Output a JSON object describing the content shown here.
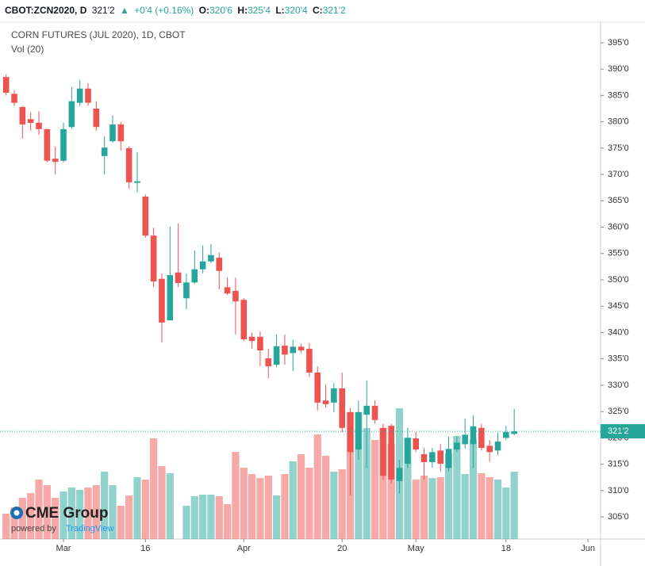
{
  "header": {
    "symbol": "CBOT:ZCN2020, D",
    "last": "321'2",
    "change": "+0'4 (+0.16%)",
    "ohlc": [
      {
        "label": "O:",
        "value": "320'6"
      },
      {
        "label": "H:",
        "value": "325'4"
      },
      {
        "label": "L:",
        "value": "320'4"
      },
      {
        "label": "C:",
        "value": "321'2"
      }
    ]
  },
  "logo": {
    "name": "CME Group",
    "powered": "powered by",
    "brand": "TradingView"
  },
  "chart_data": {
    "type": "candlestick",
    "title": "CORN FUTURES (JUL 2020), 1D, CBOT",
    "subtitle": "Vol (20)",
    "up_color": "#26a69a",
    "down_color": "#ef5350",
    "grid": false,
    "categories": [
      null,
      null,
      null,
      null,
      null,
      null,
      null,
      "Mar",
      null,
      null,
      null,
      null,
      null,
      null,
      null,
      null,
      null,
      "16",
      null,
      null,
      null,
      null,
      null,
      null,
      null,
      null,
      null,
      null,
      null,
      "Apr",
      null,
      null,
      null,
      null,
      null,
      null,
      null,
      null,
      null,
      null,
      null,
      "20",
      null,
      null,
      null,
      null,
      null,
      null,
      null,
      null,
      "May",
      null,
      null,
      null,
      null,
      null,
      null,
      null,
      null,
      null,
      null,
      "18",
      null,
      null,
      null,
      null,
      null,
      null,
      null,
      null,
      null,
      "Jun"
    ],
    "open": [
      388.5,
      385.3,
      382.8,
      380.5,
      379.8,
      378.6,
      373,
      372.6,
      379,
      383.6,
      386.3,
      382.5,
      373.5,
      376.3,
      379.5,
      375,
      368.4,
      365.8,
      358.4,
      350.2,
      342.3,
      351.4,
      346.5,
      349.5,
      352,
      353.5,
      354.2,
      348.6,
      347.9,
      346.2,
      339.2,
      339.2,
      335.1,
      333.9,
      337.5,
      336.1,
      337.3,
      336.9,
      332.4,
      327.1,
      326.7,
      329.4,
      324.9,
      317.8,
      324.4,
      326.1,
      321.9,
      322.3,
      311.8,
      315.1,
      319.9,
      316.9,
      315.4,
      317.6,
      314.3,
      317.8,
      318.8,
      318.8,
      321.9,
      318.5,
      317.6,
      320,
      320.75,
      null,
      null,
      null,
      null,
      null,
      null,
      null,
      null,
      null
    ],
    "high": [
      389,
      386,
      383,
      381.8,
      382,
      378.7,
      375.3,
      379.8,
      386.6,
      387.9,
      387.3,
      383.9,
      377.2,
      381.2,
      380,
      375.3,
      374.2,
      366.2,
      359.9,
      351.2,
      360.1,
      360.7,
      351.2,
      355.6,
      356.5,
      356.8,
      355.2,
      350.4,
      350.4,
      346.5,
      340,
      340.2,
      336.9,
      339.6,
      339.6,
      338.6,
      337.9,
      338,
      333.6,
      330.1,
      330.4,
      332.4,
      325.7,
      327.1,
      330.9,
      327.1,
      322.7,
      322.7,
      315.8,
      321.9,
      321.1,
      318.1,
      318.1,
      318.8,
      320.3,
      320.3,
      323.7,
      324.3,
      322.7,
      319.6,
      320.9,
      322.3,
      325.5,
      null,
      null,
      null,
      null,
      null,
      null,
      null,
      null,
      null
    ],
    "low": [
      385,
      383,
      376.8,
      378.3,
      377.5,
      372.3,
      370,
      372.3,
      378.7,
      383,
      383,
      378.3,
      370,
      376,
      374.5,
      367.3,
      366.6,
      358,
      348.6,
      338.1,
      342.3,
      348.6,
      344.4,
      349.2,
      351.2,
      353.2,
      348.2,
      347.1,
      339.6,
      338.4,
      336.9,
      333.6,
      331.3,
      333.4,
      333.9,
      332.7,
      336.1,
      331.6,
      325.2,
      325.8,
      324.9,
      321.1,
      309.1,
      315.8,
      314.3,
      322.7,
      312.1,
      311.3,
      309.5,
      314.3,
      317.3,
      312.1,
      314.3,
      313.6,
      313.6,
      317.3,
      318,
      314.3,
      317.6,
      315.5,
      316.7,
      319.6,
      320.5,
      null,
      null,
      null,
      null,
      null,
      null,
      null,
      null,
      null
    ],
    "close": [
      385.5,
      383.6,
      379.5,
      379.8,
      378.6,
      372.6,
      372.4,
      378.6,
      383.9,
      386.3,
      383.6,
      379,
      375.1,
      379.5,
      376.3,
      368.5,
      368.7,
      358.4,
      349.7,
      341.9,
      350.9,
      349.4,
      349.5,
      352,
      353.5,
      354.7,
      351.7,
      347.4,
      345.9,
      338.7,
      338.4,
      336.6,
      333.6,
      337.4,
      335.8,
      337.3,
      336.6,
      332.4,
      326.7,
      326.4,
      329.4,
      321.9,
      317.3,
      324.9,
      326.1,
      323.4,
      312.8,
      312.1,
      314.3,
      320,
      317.8,
      315.4,
      317.3,
      315.1,
      317.9,
      319.1,
      320.6,
      322.2,
      318.1,
      317.3,
      319.3,
      321.1,
      321.25,
      null,
      null,
      null,
      null,
      null,
      null,
      null,
      null,
      null
    ],
    "volume": [
      32,
      40,
      52,
      58,
      75,
      68,
      52,
      60,
      65,
      62,
      65,
      68,
      85,
      68,
      42,
      55,
      78,
      75,
      127,
      92,
      83,
      null,
      42,
      54,
      56,
      56,
      54,
      44,
      110,
      90,
      82,
      77,
      80,
      55,
      82,
      98,
      107,
      90,
      132,
      105,
      85,
      88,
      160,
      160,
      140,
      125,
      140,
      120,
      165,
      128,
      75,
      80,
      77,
      78,
      108,
      130,
      82,
      125,
      83,
      78,
      75,
      65,
      85,
      null,
      null,
      null,
      null,
      null,
      null,
      null,
      null,
      null
    ],
    "ylim": [
      300.8,
      398.9
    ],
    "yticks": [
      {
        "value": 305,
        "label": "305'0"
      },
      {
        "value": 310,
        "label": "310'0"
      },
      {
        "value": 315,
        "label": "315'0"
      },
      {
        "value": 320,
        "label": "320'0"
      },
      {
        "value": 325,
        "label": "325'0"
      },
      {
        "value": 330,
        "label": "330'0"
      },
      {
        "value": 335,
        "label": "335'0"
      },
      {
        "value": 340,
        "label": "340'0"
      },
      {
        "value": 345,
        "label": "345'0"
      },
      {
        "value": 350,
        "label": "350'0"
      },
      {
        "value": 355,
        "label": "355'0"
      },
      {
        "value": 360,
        "label": "360'0"
      },
      {
        "value": 365,
        "label": "365'0"
      },
      {
        "value": 370,
        "label": "370'0"
      },
      {
        "value": 375,
        "label": "375'0"
      },
      {
        "value": 380,
        "label": "380'0"
      },
      {
        "value": 385,
        "label": "385'0"
      },
      {
        "value": 390,
        "label": "390'0"
      },
      {
        "value": 395,
        "label": "395'0"
      }
    ],
    "y2lim": [
      0,
      200
    ],
    "last_price": {
      "value": 321.25,
      "label": "321'2"
    }
  }
}
